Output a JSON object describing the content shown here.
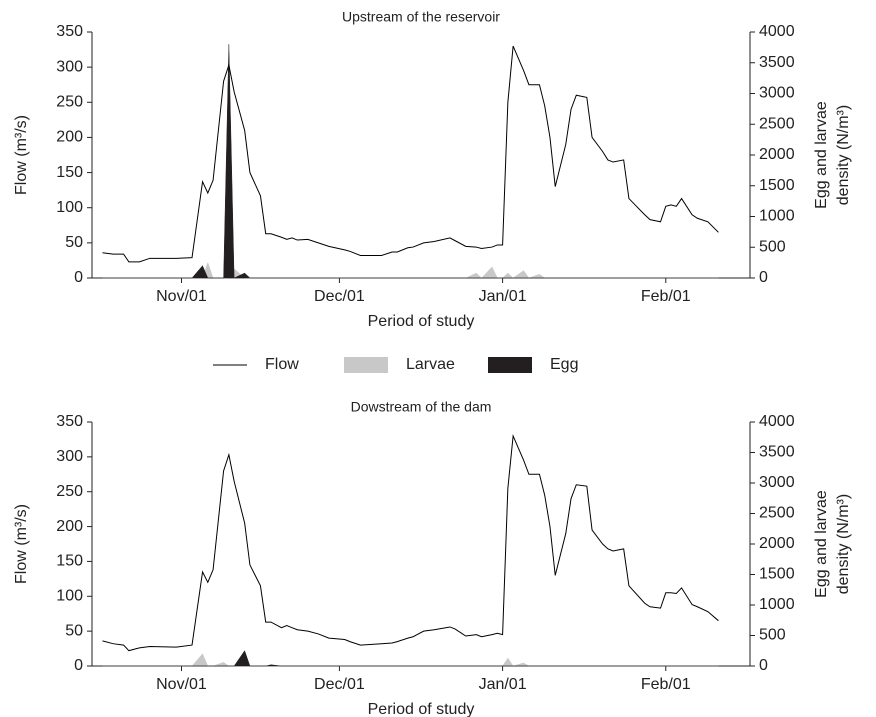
{
  "chart_data": [
    {
      "type": "line",
      "title": "Upstream of the reservoir",
      "xlabel": "Period of study",
      "ylabel": "Flow (m³/s)",
      "y2label": [
        "Egg and larvae",
        "density (N/m³)"
      ],
      "legend": "below",
      "xlim": [
        14,
        139
      ],
      "xticks": [
        {
          "value": 31,
          "label": "Nov/01"
        },
        {
          "value": 61,
          "label": "Dec/01"
        },
        {
          "value": 92,
          "label": "Jan/01"
        },
        {
          "value": 123,
          "label": "Feb/01"
        }
      ],
      "ylim": [
        0,
        350
      ],
      "yticks": [
        0,
        50,
        100,
        150,
        200,
        250,
        300,
        350
      ],
      "y2lim": [
        0,
        4000
      ],
      "y2ticks": [
        0,
        500,
        1000,
        1500,
        2000,
        2500,
        3000,
        3500,
        4000
      ],
      "x": [
        16,
        18,
        20,
        21,
        23,
        25,
        30,
        33,
        35,
        36,
        37,
        39,
        40,
        41,
        43,
        44,
        46,
        47,
        48,
        50,
        51,
        52,
        53,
        55,
        57,
        59,
        62,
        63,
        65,
        69,
        71,
        72,
        74,
        75,
        77,
        79,
        82,
        83,
        85,
        87,
        88,
        90,
        91,
        92,
        93,
        94,
        96,
        97,
        99,
        100,
        101,
        102,
        104,
        105,
        106,
        108,
        109,
        111,
        112,
        113,
        115,
        116,
        119,
        120,
        122,
        123,
        124,
        125,
        126,
        128,
        129,
        131,
        133
      ],
      "series": [
        {
          "name": "Flow",
          "color": "#000000",
          "values": [
            36,
            34,
            34,
            23,
            23,
            28,
            28,
            29,
            137,
            121,
            139,
            280,
            303,
            265,
            210,
            150,
            117,
            63,
            63,
            58,
            55,
            57,
            54,
            55,
            50,
            45,
            40,
            38,
            32,
            32,
            37,
            37,
            43,
            44,
            50,
            52,
            57,
            53,
            45,
            44,
            42,
            44,
            47,
            47,
            250,
            330,
            295,
            275,
            275,
            245,
            200,
            130,
            190,
            240,
            260,
            257,
            200,
            180,
            168,
            165,
            168,
            113,
            90,
            83,
            80,
            102,
            104,
            102,
            113,
            90,
            85,
            80,
            65
          ]
        },
        {
          "name": "Larvae",
          "color": "#c8c8c8",
          "axis": "y2",
          "values": [
            0,
            0,
            0,
            0,
            0,
            0,
            0,
            0,
            0,
            250,
            0,
            0,
            0,
            150,
            0,
            0,
            0,
            0,
            0,
            0,
            0,
            0,
            0,
            0,
            0,
            0,
            0,
            0,
            0,
            0,
            0,
            0,
            0,
            0,
            0,
            0,
            0,
            0,
            0,
            80,
            0,
            180,
            0,
            0,
            80,
            0,
            120,
            0,
            60,
            0,
            0,
            0,
            0,
            0,
            0,
            0,
            0,
            0,
            0,
            0,
            0,
            0,
            0,
            0,
            0,
            0,
            0,
            0,
            0,
            0,
            0,
            0,
            0
          ]
        },
        {
          "name": "Egg",
          "color": "#231f20",
          "axis": "y2",
          "values": [
            0,
            0,
            0,
            0,
            0,
            0,
            0,
            0,
            200,
            0,
            0,
            0,
            3800,
            0,
            80,
            0,
            0,
            0,
            0,
            0,
            0,
            0,
            0,
            0,
            0,
            0,
            0,
            0,
            0,
            0,
            0,
            0,
            0,
            0,
            0,
            0,
            0,
            0,
            0,
            0,
            0,
            0,
            0,
            0,
            0,
            0,
            0,
            0,
            0,
            0,
            0,
            0,
            0,
            0,
            0,
            0,
            0,
            0,
            0,
            0,
            0,
            0,
            0,
            0,
            0,
            0,
            0,
            0,
            0,
            0,
            0,
            0,
            0
          ]
        }
      ]
    },
    {
      "type": "line",
      "title": "Dowstream of the dam",
      "xlabel": "Period of study",
      "ylabel": "Flow (m³/s)",
      "y2label": [
        "Egg and larvae",
        "density (N/m³)"
      ],
      "xlim": [
        14,
        139
      ],
      "xticks": [
        {
          "value": 31,
          "label": "Nov/01"
        },
        {
          "value": 61,
          "label": "Dec/01"
        },
        {
          "value": 92,
          "label": "Jan/01"
        },
        {
          "value": 123,
          "label": "Feb/01"
        }
      ],
      "ylim": [
        0,
        350
      ],
      "yticks": [
        0,
        50,
        100,
        150,
        200,
        250,
        300,
        350
      ],
      "y2lim": [
        0,
        4000
      ],
      "y2ticks": [
        0,
        500,
        1000,
        1500,
        2000,
        2500,
        3000,
        3500,
        4000
      ],
      "x": [
        16,
        18,
        20,
        21,
        23,
        25,
        30,
        33,
        35,
        36,
        37,
        39,
        40,
        41,
        43,
        44,
        46,
        47,
        48,
        50,
        51,
        52,
        53,
        55,
        57,
        59,
        62,
        63,
        65,
        69,
        71,
        72,
        74,
        75,
        77,
        79,
        82,
        83,
        85,
        87,
        88,
        90,
        91,
        92,
        93,
        94,
        96,
        97,
        99,
        100,
        101,
        102,
        104,
        105,
        106,
        108,
        109,
        111,
        112,
        113,
        115,
        116,
        119,
        120,
        122,
        123,
        124,
        125,
        126,
        128,
        129,
        131,
        133
      ],
      "series": [
        {
          "color": "#000000",
          "values": [
            36,
            32,
            30,
            22,
            26,
            28,
            27,
            30,
            135,
            120,
            138,
            280,
            303,
            265,
            205,
            145,
            115,
            63,
            63,
            55,
            58,
            55,
            52,
            50,
            46,
            40,
            38,
            35,
            30,
            32,
            33,
            35,
            40,
            42,
            50,
            52,
            56,
            53,
            43,
            45,
            42,
            45,
            47,
            45,
            255,
            330,
            295,
            275,
            275,
            245,
            200,
            130,
            190,
            240,
            260,
            258,
            195,
            175,
            168,
            165,
            168,
            115,
            90,
            85,
            83,
            105,
            105,
            104,
            112,
            88,
            85,
            78,
            65
          ]
        },
        {
          "color": "#c8c8c8",
          "axis": "y2",
          "values": [
            0,
            0,
            0,
            0,
            0,
            0,
            0,
            0,
            200,
            0,
            0,
            60,
            0,
            0,
            0,
            0,
            0,
            0,
            0,
            0,
            0,
            0,
            0,
            0,
            0,
            0,
            0,
            0,
            0,
            0,
            0,
            0,
            0,
            0,
            0,
            0,
            0,
            0,
            0,
            0,
            0,
            0,
            0,
            0,
            130,
            0,
            50,
            0,
            0,
            0,
            0,
            0,
            0,
            0,
            0,
            0,
            0,
            0,
            0,
            0,
            0,
            0,
            0,
            0,
            0,
            0,
            0,
            0,
            0,
            0,
            0,
            0,
            0
          ]
        },
        {
          "color": "#231f20",
          "axis": "y2",
          "values": [
            0,
            0,
            0,
            0,
            0,
            0,
            0,
            0,
            0,
            0,
            0,
            0,
            0,
            0,
            250,
            0,
            0,
            0,
            20,
            0,
            0,
            0,
            0,
            0,
            0,
            0,
            0,
            0,
            0,
            0,
            0,
            0,
            0,
            0,
            0,
            0,
            0,
            0,
            0,
            0,
            0,
            0,
            0,
            0,
            0,
            0,
            0,
            0,
            0,
            0,
            0,
            0,
            0,
            0,
            0,
            0,
            0,
            0,
            0,
            0,
            0,
            0,
            0,
            0,
            0,
            0,
            0,
            0,
            0,
            0,
            0,
            0,
            0
          ]
        }
      ]
    }
  ]
}
